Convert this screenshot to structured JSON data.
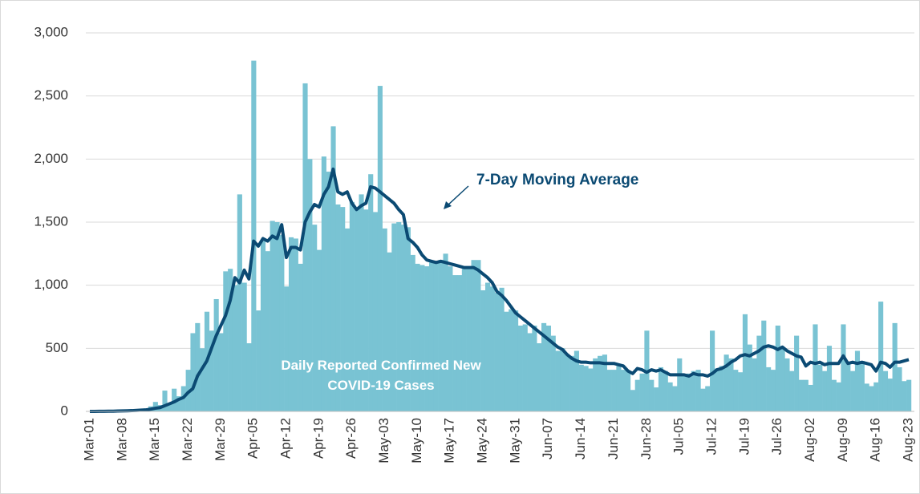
{
  "chart_data": {
    "type": "bar",
    "categories": [
      "Mar-01",
      null,
      null,
      null,
      null,
      null,
      null,
      "Mar-08",
      null,
      null,
      null,
      null,
      null,
      null,
      "Mar-15",
      null,
      null,
      null,
      null,
      null,
      null,
      "Mar-22",
      null,
      null,
      null,
      null,
      null,
      null,
      "Mar-29",
      null,
      null,
      null,
      null,
      null,
      null,
      "Apr-05",
      null,
      null,
      null,
      null,
      null,
      null,
      "Apr-12",
      null,
      null,
      null,
      null,
      null,
      null,
      "Apr-19",
      null,
      null,
      null,
      null,
      null,
      null,
      "Apr-26",
      null,
      null,
      null,
      null,
      null,
      null,
      "May-03",
      null,
      null,
      null,
      null,
      null,
      null,
      "May-10",
      null,
      null,
      null,
      null,
      null,
      null,
      "May-17",
      null,
      null,
      null,
      null,
      null,
      null,
      "May-24",
      null,
      null,
      null,
      null,
      null,
      null,
      "May-31",
      null,
      null,
      null,
      null,
      null,
      null,
      "Jun-07",
      null,
      null,
      null,
      null,
      null,
      null,
      "Jun-14",
      null,
      null,
      null,
      null,
      null,
      null,
      "Jun-21",
      null,
      null,
      null,
      null,
      null,
      null,
      "Jun-28",
      null,
      null,
      null,
      null,
      null,
      null,
      "Jul-05",
      null,
      null,
      null,
      null,
      null,
      null,
      "Jul-12",
      null,
      null,
      null,
      null,
      null,
      null,
      "Jul-19",
      null,
      null,
      null,
      null,
      null,
      null,
      "Jul-26",
      null,
      null,
      null,
      null,
      null,
      null,
      "Aug-02",
      null,
      null,
      null,
      null,
      null,
      null,
      "Aug-09",
      null,
      null,
      null,
      null,
      null,
      null,
      "Aug-16",
      null,
      null,
      null,
      null,
      null,
      null,
      "Aug-23"
    ],
    "series": [
      {
        "name": "Daily Reported Confirmed New COVID-19 Cases",
        "type": "bar",
        "color": "#79c3d3",
        "values": [
          0,
          0,
          2,
          3,
          3,
          4,
          5,
          6,
          8,
          10,
          15,
          20,
          25,
          40,
          75,
          50,
          165,
          60,
          180,
          120,
          200,
          330,
          620,
          700,
          500,
          790,
          640,
          890,
          620,
          1110,
          1130,
          1000,
          1720,
          1020,
          540,
          2780,
          800,
          1350,
          1270,
          1510,
          1500,
          1400,
          990,
          1380,
          1370,
          1170,
          2600,
          2000,
          1480,
          1280,
          2020,
          1900,
          2260,
          1640,
          1620,
          1450,
          1660,
          1600,
          1720,
          1600,
          1880,
          1580,
          2580,
          1450,
          1260,
          1490,
          1500,
          1480,
          1460,
          1240,
          1170,
          1160,
          1150,
          1180,
          1180,
          1200,
          1250,
          1150,
          1080,
          1080,
          1130,
          1150,
          1200,
          1200,
          960,
          1020,
          990,
          940,
          980,
          790,
          810,
          800,
          680,
          690,
          620,
          680,
          540,
          700,
          680,
          600,
          480,
          500,
          450,
          440,
          480,
          370,
          360,
          340,
          420,
          440,
          450,
          330,
          330,
          360,
          330,
          320,
          170,
          250,
          300,
          640,
          250,
          190,
          350,
          320,
          230,
          200,
          420,
          280,
          300,
          320,
          330,
          180,
          200,
          640,
          340,
          360,
          450,
          420,
          330,
          310,
          770,
          530,
          420,
          600,
          720,
          350,
          330,
          680,
          500,
          420,
          320,
          600,
          250,
          250,
          210,
          690,
          370,
          320,
          520,
          250,
          230,
          690,
          390,
          320,
          480,
          400,
          220,
          200,
          230,
          870,
          320,
          260,
          700,
          350,
          240,
          250
        ]
      },
      {
        "name": "7-Day Moving Average",
        "type": "line",
        "color": "#0b4a73",
        "values": [
          0,
          0,
          1,
          1,
          2,
          2,
          3,
          4,
          5,
          6,
          8,
          10,
          12,
          18,
          25,
          30,
          45,
          60,
          75,
          95,
          110,
          150,
          180,
          280,
          340,
          400,
          500,
          600,
          680,
          760,
          880,
          1060,
          1020,
          1120,
          1050,
          1350,
          1310,
          1370,
          1350,
          1390,
          1370,
          1480,
          1220,
          1300,
          1300,
          1280,
          1500,
          1580,
          1640,
          1620,
          1720,
          1780,
          1920,
          1740,
          1720,
          1740,
          1650,
          1600,
          1630,
          1650,
          1780,
          1770,
          1740,
          1710,
          1680,
          1650,
          1600,
          1560,
          1370,
          1340,
          1300,
          1240,
          1200,
          1190,
          1180,
          1190,
          1180,
          1170,
          1160,
          1150,
          1140,
          1140,
          1140,
          1120,
          1090,
          1060,
          1020,
          950,
          920,
          880,
          830,
          780,
          750,
          720,
          690,
          660,
          630,
          600,
          570,
          540,
          510,
          490,
          450,
          420,
          400,
          390,
          390,
          385,
          385,
          385,
          380,
          380,
          380,
          370,
          360,
          320,
          300,
          340,
          330,
          310,
          330,
          320,
          330,
          310,
          290,
          290,
          290,
          290,
          280,
          300,
          290,
          290,
          280,
          300,
          330,
          340,
          360,
          390,
          410,
          440,
          450,
          440,
          460,
          480,
          510,
          520,
          510,
          490,
          510,
          480,
          460,
          440,
          430,
          360,
          390,
          380,
          390,
          370,
          380,
          380,
          380,
          440,
          380,
          390,
          380,
          390,
          380,
          370,
          320,
          390,
          380,
          350,
          390,
          390,
          400,
          410
        ]
      }
    ],
    "ylim": [
      0,
      3000
    ],
    "yticks": [
      0,
      500,
      {
        "value": 1000,
        "label": "1,000"
      },
      {
        "value": 1500,
        "label": "1,500"
      },
      {
        "value": 2000,
        "label": "2,000"
      },
      {
        "value": 2500,
        "label": "2,500"
      },
      {
        "value": 3000,
        "label": "3,000"
      }
    ],
    "grid": true
  }
}
